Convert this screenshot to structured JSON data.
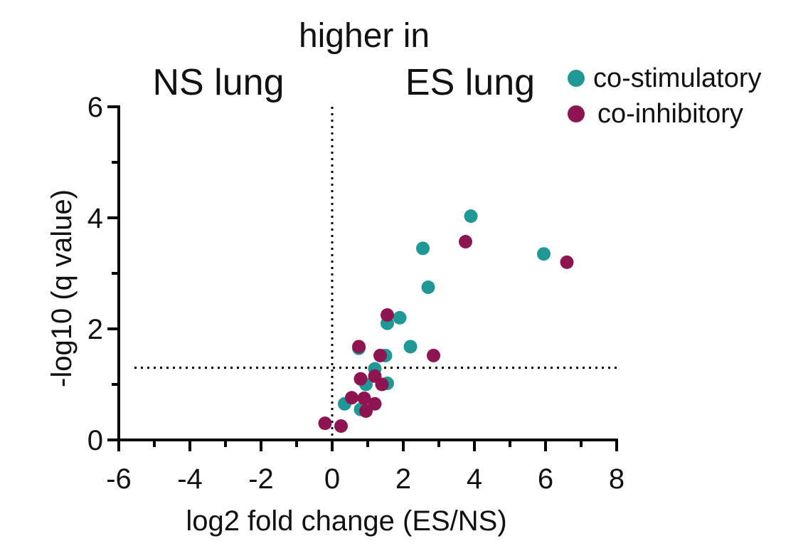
{
  "chart_data": {
    "type": "scatter",
    "title": "higher in",
    "region_labels": {
      "left": "NS lung",
      "right": "ES lung"
    },
    "xlabel": "log2 fold change (ES/NS)",
    "ylabel": "-log10 (q value)",
    "xlim": [
      -6,
      8
    ],
    "ylim": [
      0,
      6
    ],
    "x_ticks": [
      -6,
      -4,
      -2,
      0,
      2,
      4,
      6,
      8
    ],
    "x_tick_labels": [
      "-6",
      "-4",
      "-2",
      "0",
      "2",
      "4",
      "6",
      "8"
    ],
    "y_ticks": [
      0,
      2,
      4,
      6
    ],
    "y_tick_labels": [
      "0",
      "2",
      "4",
      "6"
    ],
    "reference_lines": {
      "vertical_x": 0,
      "horizontal_y": 1.3
    },
    "legend": {
      "position": "top-right"
    },
    "series": [
      {
        "name": "co-stimulatory",
        "color": "#1f9896",
        "points": [
          [
            3.9,
            4.03
          ],
          [
            2.55,
            3.45
          ],
          [
            5.95,
            3.35
          ],
          [
            2.7,
            2.75
          ],
          [
            1.9,
            2.2
          ],
          [
            1.55,
            2.1
          ],
          [
            2.2,
            1.68
          ],
          [
            0.75,
            1.65
          ],
          [
            1.5,
            1.52
          ],
          [
            1.2,
            1.28
          ],
          [
            0.95,
            1.0
          ],
          [
            1.55,
            1.02
          ],
          [
            0.35,
            0.65
          ],
          [
            0.8,
            0.55
          ]
        ]
      },
      {
        "name": "co-inhibitory",
        "color": "#8e1552",
        "points": [
          [
            3.75,
            3.57
          ],
          [
            6.6,
            3.2
          ],
          [
            1.55,
            2.25
          ],
          [
            0.75,
            1.68
          ],
          [
            2.85,
            1.52
          ],
          [
            1.35,
            1.52
          ],
          [
            0.8,
            1.1
          ],
          [
            1.2,
            1.15
          ],
          [
            1.4,
            1.0
          ],
          [
            0.55,
            0.76
          ],
          [
            0.9,
            0.75
          ],
          [
            1.2,
            0.65
          ],
          [
            0.95,
            0.52
          ],
          [
            -0.2,
            0.3
          ],
          [
            0.25,
            0.25
          ]
        ]
      }
    ]
  }
}
